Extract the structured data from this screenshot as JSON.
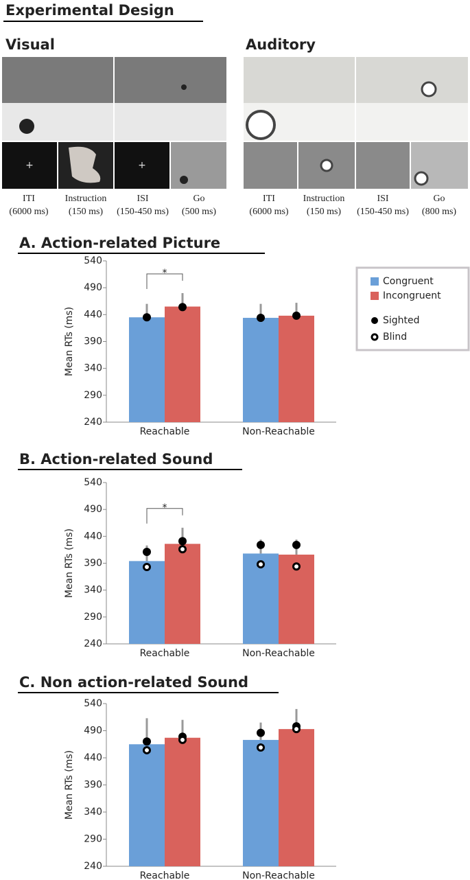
{
  "design": {
    "title": "Experimental Design",
    "visual": {
      "label": "Visual",
      "steps": [
        {
          "name": "ITI",
          "duration": "(6000 ms)"
        },
        {
          "name": "Instruction",
          "duration": "(150 ms)"
        },
        {
          "name": "ISI",
          "duration": "(150-450 ms)"
        },
        {
          "name": "Go",
          "duration": "(500 ms)"
        }
      ]
    },
    "auditory": {
      "label": "Auditory",
      "steps": [
        {
          "name": "ITI",
          "duration": "(6000 ms)"
        },
        {
          "name": "Instruction",
          "duration": "(150 ms)"
        },
        {
          "name": "ISI",
          "duration": "(150-450 ms)"
        },
        {
          "name": "Go",
          "duration": "(800 ms)"
        }
      ]
    }
  },
  "chart_data": [
    {
      "type": "bar",
      "title": "A. Action-related Picture",
      "y_label": "Mean RTs (ms)",
      "categories": [
        "Reachable",
        "Non-Reachable"
      ],
      "ylim": [
        240,
        540
      ],
      "yticks": [
        240,
        290,
        340,
        390,
        440,
        490,
        540
      ],
      "annotation": "*",
      "legend": true,
      "series": [
        {
          "name": "Congruent",
          "color": "#6a9fd8",
          "values": [
            435,
            434
          ],
          "errors": [
            25,
            26
          ]
        },
        {
          "name": "Incongruent",
          "color": "#d9625c",
          "values": [
            455,
            438
          ],
          "errors": [
            25,
            24
          ]
        }
      ],
      "markers": [
        {
          "name": "Sighted",
          "style": "filled",
          "values": [
            [
              435,
              434
            ],
            [
              454,
              438
            ]
          ]
        },
        {
          "name": "Blind",
          "style": "hollow",
          "values": [
            [
              null,
              null
            ],
            [
              null,
              null
            ]
          ]
        }
      ]
    },
    {
      "type": "bar",
      "title": "B. Action-related Sound",
      "y_label": "Mean RTs (ms)",
      "categories": [
        "Reachable",
        "Non-Reachable"
      ],
      "ylim": [
        240,
        540
      ],
      "yticks": [
        240,
        290,
        340,
        390,
        440,
        490,
        540
      ],
      "annotation": "*",
      "legend": false,
      "series": [
        {
          "name": "Congruent",
          "color": "#6a9fd8",
          "values": [
            394,
            408
          ],
          "errors": [
            29,
            26
          ]
        },
        {
          "name": "Incongruent",
          "color": "#d9625c",
          "values": [
            426,
            406
          ],
          "errors": [
            30,
            28
          ]
        }
      ],
      "markers": [
        {
          "name": "Sighted",
          "style": "filled",
          "values": [
            [
              411,
              424
            ],
            [
              431,
              424
            ]
          ]
        },
        {
          "name": "Blind",
          "style": "hollow",
          "values": [
            [
              383,
              388
            ],
            [
              416,
              384
            ]
          ]
        }
      ]
    },
    {
      "type": "bar",
      "title": "C. Non action-related Sound",
      "y_label": "Mean RTs (ms)",
      "categories": [
        "Reachable",
        "Non-Reachable"
      ],
      "ylim": [
        240,
        540
      ],
      "yticks": [
        240,
        290,
        340,
        390,
        440,
        490,
        540
      ],
      "legend": false,
      "series": [
        {
          "name": "Congruent",
          "color": "#6a9fd8",
          "values": [
            465,
            473
          ],
          "errors": [
            48,
            32
          ]
        },
        {
          "name": "Incongruent",
          "color": "#d9625c",
          "values": [
            477,
            493
          ],
          "errors": [
            33,
            37
          ]
        }
      ],
      "markers": [
        {
          "name": "Sighted",
          "style": "filled",
          "values": [
            [
              470,
              486
            ],
            [
              479,
              498
            ]
          ]
        },
        {
          "name": "Blind",
          "style": "hollow",
          "values": [
            [
              454,
              459
            ],
            [
              473,
              493
            ]
          ]
        }
      ]
    }
  ]
}
